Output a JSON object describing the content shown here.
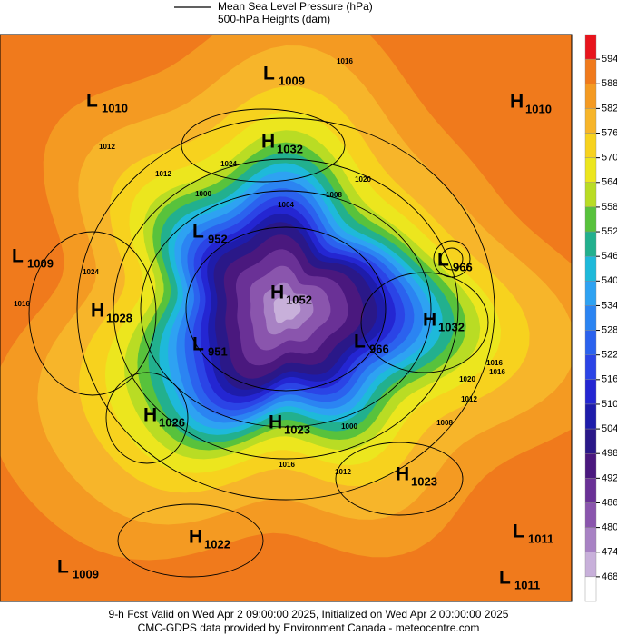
{
  "legend": {
    "lines": [
      "Mean Sea Level Pressure (hPa)",
      "500-hPa Heights (dam)"
    ]
  },
  "colorbar": {
    "ticks": [
      594,
      588,
      582,
      576,
      570,
      564,
      558,
      552,
      546,
      540,
      534,
      528,
      522,
      516,
      510,
      504,
      498,
      492,
      486,
      480,
      474,
      468
    ],
    "colors": [
      "#e8141c",
      "#f07a1c",
      "#f49a22",
      "#f7b52a",
      "#f7d21e",
      "#ece61e",
      "#b9dc24",
      "#58c23c",
      "#22b08e",
      "#1eb9da",
      "#2ea2f2",
      "#2b84f2",
      "#2b62ee",
      "#2b44e6",
      "#2426d2",
      "#1e1caa",
      "#2a1888",
      "#4a187e",
      "#6a3196",
      "#8a55ad",
      "#a882c4",
      "#c8b0da",
      "#ffffff"
    ]
  },
  "centers": [
    {
      "letter": "L",
      "value": 1010
    },
    {
      "letter": "L",
      "value": 1009
    },
    {
      "letter": "H",
      "value": 1010
    },
    {
      "letter": "H",
      "value": 1032
    },
    {
      "letter": "L",
      "value": 1009
    },
    {
      "letter": "L",
      "value": 952
    },
    {
      "letter": "L",
      "value": 966
    },
    {
      "letter": "H",
      "value": 1052
    },
    {
      "letter": "H",
      "value": 1028
    },
    {
      "letter": "H",
      "value": 1032
    },
    {
      "letter": "L",
      "value": 951
    },
    {
      "letter": "L",
      "value": 966
    },
    {
      "letter": "H",
      "value": 1026
    },
    {
      "letter": "H",
      "value": 1023
    },
    {
      "letter": "H",
      "value": 1023
    },
    {
      "letter": "H",
      "value": 1022
    },
    {
      "letter": "L",
      "value": 1011
    },
    {
      "letter": "L",
      "value": 1009
    },
    {
      "letter": "L",
      "value": 1011
    }
  ],
  "isobar_labels": [
    1012,
    1016,
    1024,
    1012,
    1020,
    1016,
    1000,
    1004,
    1008,
    1024,
    1016,
    1020,
    1016,
    1012,
    1000,
    1016,
    1012,
    1008
  ],
  "footer": [
    "9-h Fcst Valid on Wed Apr  2 09:00:00 2025, Initialized on Wed Apr  2 00:00:00 2025",
    "CMC-GDPS data provided by Environment Canada - meteocentre.com"
  ]
}
